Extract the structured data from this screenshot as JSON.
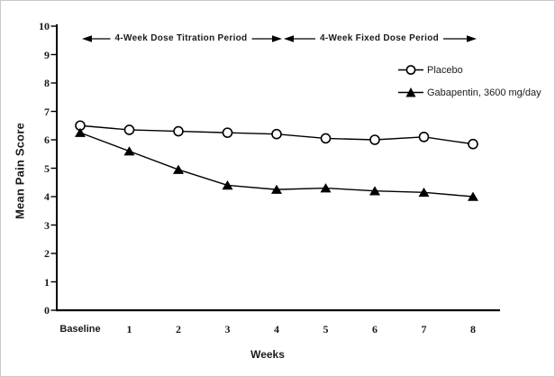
{
  "colors": {
    "line": "#000000",
    "marker_fill_open": "#ffffff",
    "background": "#ffffff",
    "frame_border": "#c9c9c9"
  },
  "chart_data": {
    "type": "line",
    "title": "",
    "xlabel": "Weeks",
    "ylabel": "Mean Pain Score",
    "categories": [
      "Baseline",
      "1",
      "2",
      "3",
      "4",
      "5",
      "6",
      "7",
      "8"
    ],
    "ylim": [
      0,
      10
    ],
    "yticks": [
      0,
      1,
      2,
      3,
      4,
      5,
      6,
      7,
      8,
      9,
      10
    ],
    "grid": false,
    "legend_position": "upper-right-inside",
    "series": [
      {
        "name": "Placebo",
        "marker": "open-circle",
        "color": "#000000",
        "values": [
          6.5,
          6.35,
          6.3,
          6.25,
          6.2,
          6.05,
          6.0,
          6.1,
          5.85
        ]
      },
      {
        "name": "Gabapentin, 3600 mg/day",
        "marker": "filled-triangle",
        "color": "#000000",
        "values": [
          6.25,
          5.6,
          4.95,
          4.4,
          4.25,
          4.3,
          4.2,
          4.15,
          4.0
        ]
      }
    ],
    "annotations": [
      {
        "text": "4-Week Dose Titration Period",
        "from_category": "Baseline",
        "to_category": "4",
        "style": "double-arrow"
      },
      {
        "text": "4-Week Fixed Dose Period",
        "from_category": "4",
        "to_category": "8",
        "style": "double-arrow"
      }
    ]
  }
}
